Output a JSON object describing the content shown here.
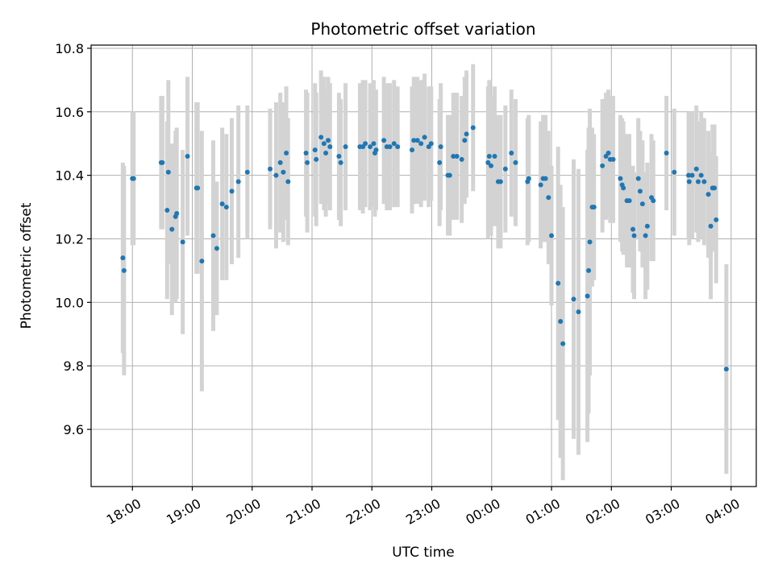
{
  "chart_data": {
    "type": "scatter",
    "title": "Photometric offset variation",
    "xlabel": "UTC time",
    "ylabel": "Photometric offset",
    "x_tick_labels": [
      "18:00",
      "19:00",
      "20:00",
      "21:00",
      "22:00",
      "23:00",
      "00:00",
      "01:00",
      "02:00",
      "03:00",
      "04:00"
    ],
    "y_tick_labels": [
      "9.6",
      "9.8",
      "10.0",
      "10.2",
      "10.4",
      "10.6",
      "10.8"
    ],
    "x_unit": "hours since 18:00 UTC",
    "xlim": [
      17.31,
      28.42
    ],
    "ylim": [
      9.42,
      10.81
    ],
    "grid": true,
    "colors": {
      "points": "#1f77b4",
      "errorbars": "#d3d3d3",
      "grid": "#b0b0b0"
    },
    "series": [
      {
        "name": "",
        "x": [
          17.84,
          17.86,
          18.0,
          18.02,
          18.48,
          18.5,
          18.58,
          18.6,
          18.66,
          18.72,
          18.74,
          18.84,
          18.92,
          19.07,
          19.09,
          19.16,
          19.35,
          19.41,
          19.5,
          19.57,
          19.66,
          19.77,
          19.92,
          20.3,
          20.4,
          20.47,
          20.52,
          20.57,
          20.6,
          20.9,
          20.92,
          21.05,
          21.07,
          21.15,
          21.2,
          21.23,
          21.27,
          21.3,
          21.45,
          21.48,
          21.56,
          21.8,
          21.85,
          21.89,
          21.97,
          22.03,
          22.05,
          22.07,
          22.2,
          22.25,
          22.3,
          22.37,
          22.43,
          22.67,
          22.7,
          22.76,
          22.82,
          22.88,
          22.95,
          22.99,
          23.13,
          23.15,
          23.27,
          23.3,
          23.36,
          23.42,
          23.5,
          23.55,
          23.58,
          23.69,
          23.94,
          23.96,
          23.99,
          24.05,
          24.11,
          24.15,
          24.23,
          24.33,
          24.4,
          24.6,
          24.62,
          24.82,
          24.86,
          24.9,
          24.95,
          25.0,
          25.11,
          25.15,
          25.19,
          25.37,
          25.45,
          25.6,
          25.62,
          25.64,
          25.68,
          25.71,
          25.85,
          25.91,
          25.95,
          25.98,
          26.03,
          26.15,
          26.18,
          26.2,
          26.26,
          26.3,
          26.36,
          26.38,
          26.45,
          26.48,
          26.52,
          26.57,
          26.6,
          26.67,
          26.7,
          26.92,
          27.05,
          27.29,
          27.3,
          27.35,
          27.42,
          27.45,
          27.5,
          27.55,
          27.62,
          27.66,
          27.69,
          27.72,
          27.75,
          27.92
        ],
        "y": [
          10.14,
          10.1,
          10.39,
          10.39,
          10.44,
          10.44,
          10.29,
          10.41,
          10.23,
          10.27,
          10.28,
          10.19,
          10.46,
          10.36,
          10.36,
          10.13,
          10.21,
          10.17,
          10.31,
          10.3,
          10.35,
          10.38,
          10.41,
          10.42,
          10.4,
          10.44,
          10.41,
          10.47,
          10.38,
          10.47,
          10.44,
          10.48,
          10.45,
          10.52,
          10.5,
          10.47,
          10.51,
          10.49,
          10.46,
          10.44,
          10.49,
          10.49,
          10.49,
          10.5,
          10.49,
          10.5,
          10.47,
          10.48,
          10.51,
          10.49,
          10.49,
          10.5,
          10.49,
          10.48,
          10.51,
          10.51,
          10.5,
          10.52,
          10.49,
          10.5,
          10.44,
          10.49,
          10.4,
          10.4,
          10.46,
          10.46,
          10.45,
          10.51,
          10.53,
          10.55,
          10.44,
          10.46,
          10.43,
          10.46,
          10.38,
          10.38,
          10.42,
          10.47,
          10.44,
          10.38,
          10.39,
          10.37,
          10.39,
          10.39,
          10.33,
          10.21,
          10.06,
          9.94,
          9.87,
          10.01,
          9.97,
          10.02,
          10.1,
          10.19,
          10.3,
          10.3,
          10.43,
          10.46,
          10.47,
          10.45,
          10.45,
          10.39,
          10.37,
          10.36,
          10.32,
          10.32,
          10.23,
          10.21,
          10.39,
          10.35,
          10.31,
          10.21,
          10.24,
          10.33,
          10.32,
          10.47,
          10.41,
          10.4,
          10.38,
          10.4,
          10.42,
          10.38,
          10.4,
          10.38,
          10.34,
          10.24,
          10.36,
          10.36,
          10.26,
          9.79
        ],
        "yerr": [
          0.3,
          0.33,
          0.21,
          0.21,
          0.21,
          0.21,
          0.28,
          0.29,
          0.27,
          0.27,
          0.27,
          0.29,
          0.25,
          0.27,
          0.27,
          0.41,
          0.3,
          0.21,
          0.24,
          0.23,
          0.23,
          0.24,
          0.21,
          0.19,
          0.23,
          0.22,
          0.22,
          0.21,
          0.2,
          0.2,
          0.22,
          0.21,
          0.21,
          0.21,
          0.21,
          0.2,
          0.2,
          0.2,
          0.2,
          0.2,
          0.2,
          0.2,
          0.21,
          0.2,
          0.2,
          0.2,
          0.2,
          0.19,
          0.2,
          0.2,
          0.2,
          0.2,
          0.19,
          0.2,
          0.2,
          0.2,
          0.2,
          0.2,
          0.19,
          0.18,
          0.2,
          0.2,
          0.19,
          0.19,
          0.2,
          0.2,
          0.2,
          0.2,
          0.2,
          0.2,
          0.24,
          0.24,
          0.22,
          0.22,
          0.21,
          0.21,
          0.2,
          0.2,
          0.2,
          0.2,
          0.2,
          0.2,
          0.2,
          0.2,
          0.21,
          0.22,
          0.43,
          0.43,
          0.43,
          0.44,
          0.45,
          0.46,
          0.45,
          0.42,
          0.25,
          0.23,
          0.21,
          0.2,
          0.2,
          0.2,
          0.2,
          0.2,
          0.21,
          0.21,
          0.21,
          0.21,
          0.2,
          0.2,
          0.19,
          0.19,
          0.2,
          0.2,
          0.2,
          0.2,
          0.19,
          0.18,
          0.2,
          0.2,
          0.2,
          0.2,
          0.2,
          0.19,
          0.2,
          0.2,
          0.2,
          0.23,
          0.2,
          0.2,
          0.2,
          0.33
        ]
      }
    ]
  }
}
